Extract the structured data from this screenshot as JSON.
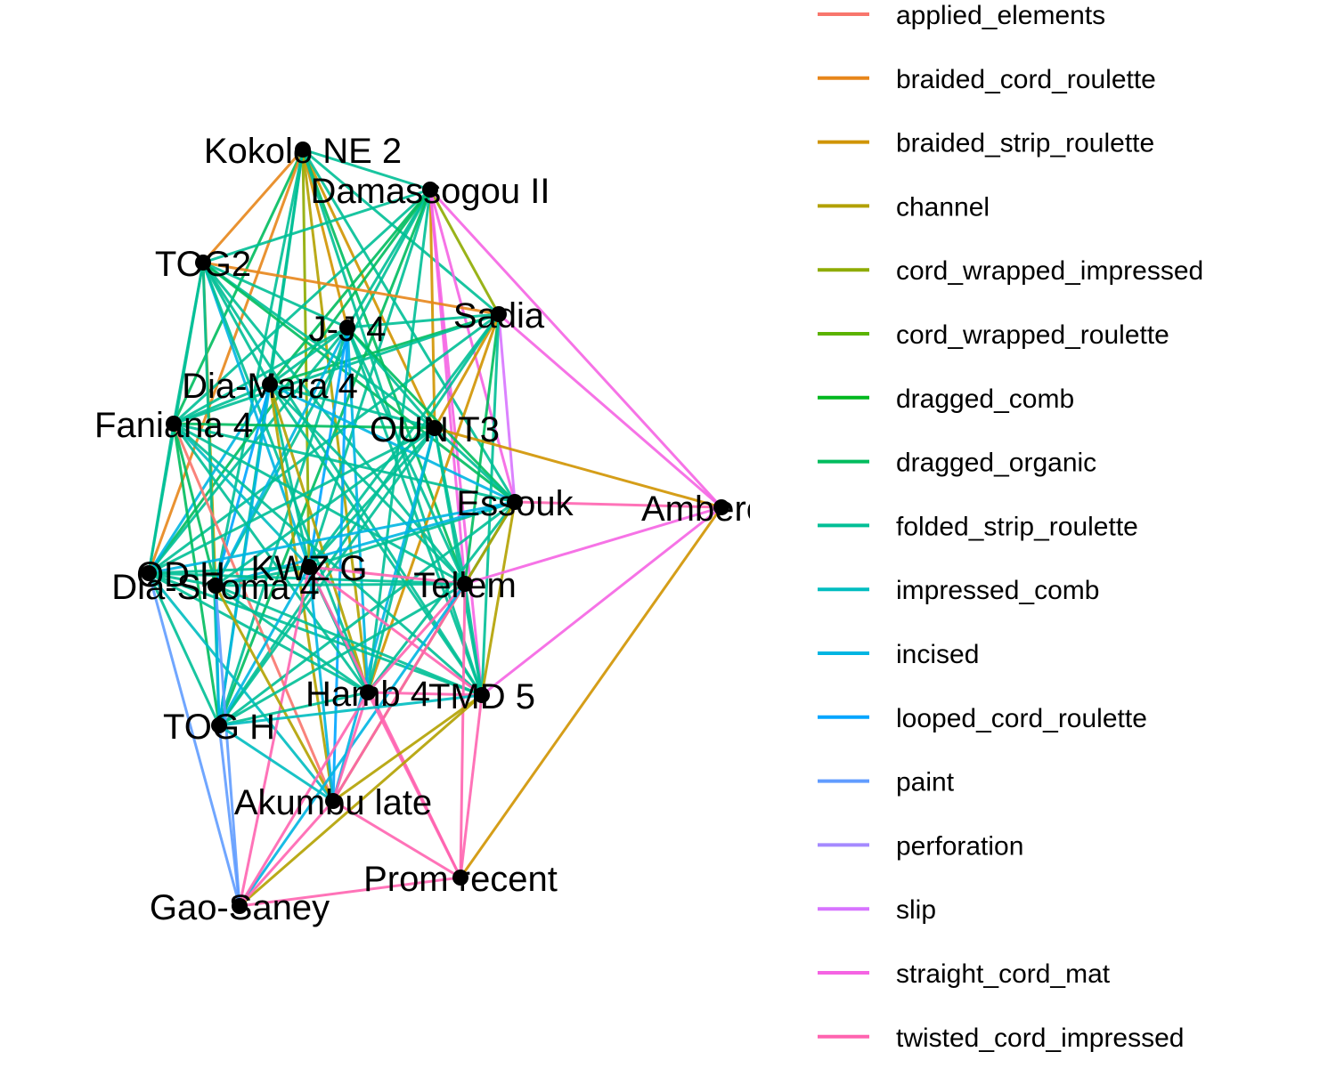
{
  "legend": [
    {
      "name": "applied_elements",
      "color": "#F8766D"
    },
    {
      "name": "braided_cord_roulette",
      "color": "#E7861B"
    },
    {
      "name": "braided_strip_roulette",
      "color": "#D09400"
    },
    {
      "name": "channel",
      "color": "#B2A100"
    },
    {
      "name": "cord_wrapped_impressed",
      "color": "#8EAB00"
    },
    {
      "name": "cord_wrapped_roulette",
      "color": "#5BB300"
    },
    {
      "name": "dragged_comb",
      "color": "#00B81F"
    },
    {
      "name": "dragged_organic",
      "color": "#00BC5E"
    },
    {
      "name": "folded_strip_roulette",
      "color": "#00BF96"
    },
    {
      "name": "impressed_comb",
      "color": "#00BDC0"
    },
    {
      "name": "incised",
      "color": "#00B5E2"
    },
    {
      "name": "looped_cord_roulette",
      "color": "#00A5FF"
    },
    {
      "name": "paint",
      "color": "#619CFF"
    },
    {
      "name": "perforation",
      "color": "#A58AFF"
    },
    {
      "name": "slip",
      "color": "#D774FF"
    },
    {
      "name": "straight_cord_mat",
      "color": "#F564E3"
    },
    {
      "name": "twisted_cord_impressed",
      "color": "#FF64B0"
    }
  ],
  "nodes": [
    {
      "id": "kokolo",
      "label": "Kokolo NE 2"
    },
    {
      "id": "damassogou",
      "label": "Damassogou II"
    },
    {
      "id": "tog2",
      "label": "TOG2"
    },
    {
      "id": "sadia",
      "label": "Sadia"
    },
    {
      "id": "jj4",
      "label": "J-J 4"
    },
    {
      "id": "diamara",
      "label": "Dia-Mara 4"
    },
    {
      "id": "faniana",
      "label": "Faniana 4"
    },
    {
      "id": "ount3",
      "label": "OUN T3"
    },
    {
      "id": "essouk",
      "label": "Essouk"
    },
    {
      "id": "ambere",
      "label": "Ambere D"
    },
    {
      "id": "odh",
      "label": "OD H"
    },
    {
      "id": "kwzg",
      "label": "KWZ G"
    },
    {
      "id": "diashoma",
      "label": "Dia-Shoma 4"
    },
    {
      "id": "tellem",
      "label": "Tellem"
    },
    {
      "id": "hamb4",
      "label": "Hamb 4"
    },
    {
      "id": "tmd5",
      "label": "TMD 5"
    },
    {
      "id": "togh",
      "label": "TOG H"
    },
    {
      "id": "akumbu",
      "label": "Akumbu late"
    },
    {
      "id": "promrecent",
      "label": "Prom recent"
    },
    {
      "id": "gaosaney",
      "label": "Gao-Saney"
    }
  ],
  "edges": [
    {
      "from": "kokolo",
      "to": "damassogou",
      "type": "folded_strip_roulette"
    },
    {
      "from": "kokolo",
      "to": "tog2",
      "type": "braided_cord_roulette"
    },
    {
      "from": "kokolo",
      "to": "sadia",
      "type": "folded_strip_roulette"
    },
    {
      "from": "kokolo",
      "to": "jj4",
      "type": "braided_strip_roulette"
    },
    {
      "from": "kokolo",
      "to": "diamara",
      "type": "folded_strip_roulette"
    },
    {
      "from": "kokolo",
      "to": "faniana",
      "type": "dragged_organic"
    },
    {
      "from": "kokolo",
      "to": "ount3",
      "type": "braided_strip_roulette"
    },
    {
      "from": "kokolo",
      "to": "essouk",
      "type": "folded_strip_roulette"
    },
    {
      "from": "kokolo",
      "to": "odh",
      "type": "braided_cord_roulette"
    },
    {
      "from": "kokolo",
      "to": "kwzg",
      "type": "cord_wrapped_impressed"
    },
    {
      "from": "kokolo",
      "to": "diashoma",
      "type": "folded_strip_roulette"
    },
    {
      "from": "kokolo",
      "to": "tellem",
      "type": "dragged_organic"
    },
    {
      "from": "kokolo",
      "to": "hamb4",
      "type": "channel"
    },
    {
      "from": "kokolo",
      "to": "tmd5",
      "type": "folded_strip_roulette"
    },
    {
      "from": "kokolo",
      "to": "togh",
      "type": "folded_strip_roulette"
    },
    {
      "from": "damassogou",
      "to": "tog2",
      "type": "folded_strip_roulette"
    },
    {
      "from": "damassogou",
      "to": "sadia",
      "type": "cord_wrapped_impressed"
    },
    {
      "from": "damassogou",
      "to": "jj4",
      "type": "folded_strip_roulette"
    },
    {
      "from": "damassogou",
      "to": "diamara",
      "type": "dragged_organic"
    },
    {
      "from": "damassogou",
      "to": "faniana",
      "type": "folded_strip_roulette"
    },
    {
      "from": "damassogou",
      "to": "ount3",
      "type": "braided_strip_roulette"
    },
    {
      "from": "damassogou",
      "to": "essouk",
      "type": "straight_cord_mat"
    },
    {
      "from": "damassogou",
      "to": "ambere",
      "type": "straight_cord_mat"
    },
    {
      "from": "damassogou",
      "to": "odh",
      "type": "dragged_organic"
    },
    {
      "from": "damassogou",
      "to": "kwzg",
      "type": "folded_strip_roulette"
    },
    {
      "from": "damassogou",
      "to": "diashoma",
      "type": "folded_strip_roulette"
    },
    {
      "from": "damassogou",
      "to": "tellem",
      "type": "straight_cord_mat"
    },
    {
      "from": "damassogou",
      "to": "hamb4",
      "type": "folded_strip_roulette"
    },
    {
      "from": "damassogou",
      "to": "tmd5",
      "type": "straight_cord_mat"
    },
    {
      "from": "damassogou",
      "to": "togh",
      "type": "dragged_organic"
    },
    {
      "from": "tog2",
      "to": "sadia",
      "type": "braided_cord_roulette"
    },
    {
      "from": "tog2",
      "to": "jj4",
      "type": "folded_strip_roulette"
    },
    {
      "from": "tog2",
      "to": "diamara",
      "type": "folded_strip_roulette"
    },
    {
      "from": "tog2",
      "to": "faniana",
      "type": "folded_strip_roulette"
    },
    {
      "from": "tog2",
      "to": "ount3",
      "type": "folded_strip_roulette"
    },
    {
      "from": "tog2",
      "to": "essouk",
      "type": "dragged_organic"
    },
    {
      "from": "tog2",
      "to": "odh",
      "type": "folded_strip_roulette"
    },
    {
      "from": "tog2",
      "to": "kwzg",
      "type": "incised"
    },
    {
      "from": "tog2",
      "to": "diashoma",
      "type": "channel"
    },
    {
      "from": "tog2",
      "to": "tellem",
      "type": "folded_strip_roulette"
    },
    {
      "from": "tog2",
      "to": "hamb4",
      "type": "folded_strip_roulette"
    },
    {
      "from": "tog2",
      "to": "tmd5",
      "type": "folded_strip_roulette"
    },
    {
      "from": "tog2",
      "to": "togh",
      "type": "folded_strip_roulette"
    },
    {
      "from": "sadia",
      "to": "jj4",
      "type": "folded_strip_roulette"
    },
    {
      "from": "sadia",
      "to": "diamara",
      "type": "dragged_organic"
    },
    {
      "from": "sadia",
      "to": "faniana",
      "type": "folded_strip_roulette"
    },
    {
      "from": "sadia",
      "to": "ount3",
      "type": "braided_strip_roulette"
    },
    {
      "from": "sadia",
      "to": "essouk",
      "type": "slip"
    },
    {
      "from": "sadia",
      "to": "ambere",
      "type": "straight_cord_mat"
    },
    {
      "from": "sadia",
      "to": "odh",
      "type": "folded_strip_roulette"
    },
    {
      "from": "sadia",
      "to": "kwzg",
      "type": "folded_strip_roulette"
    },
    {
      "from": "sadia",
      "to": "tellem",
      "type": "dragged_organic"
    },
    {
      "from": "sadia",
      "to": "hamb4",
      "type": "braided_strip_roulette"
    },
    {
      "from": "sadia",
      "to": "tmd5",
      "type": "folded_strip_roulette"
    },
    {
      "from": "sadia",
      "to": "togh",
      "type": "folded_strip_roulette"
    },
    {
      "from": "jj4",
      "to": "diamara",
      "type": "folded_strip_roulette"
    },
    {
      "from": "jj4",
      "to": "faniana",
      "type": "folded_strip_roulette"
    },
    {
      "from": "jj4",
      "to": "ount3",
      "type": "folded_strip_roulette"
    },
    {
      "from": "jj4",
      "to": "essouk",
      "type": "dragged_organic"
    },
    {
      "from": "jj4",
      "to": "odh",
      "type": "folded_strip_roulette"
    },
    {
      "from": "jj4",
      "to": "kwzg",
      "type": "looped_cord_roulette"
    },
    {
      "from": "jj4",
      "to": "diashoma",
      "type": "incised"
    },
    {
      "from": "jj4",
      "to": "tellem",
      "type": "folded_strip_roulette"
    },
    {
      "from": "jj4",
      "to": "hamb4",
      "type": "incised"
    },
    {
      "from": "jj4",
      "to": "tmd5",
      "type": "folded_strip_roulette"
    },
    {
      "from": "jj4",
      "to": "togh",
      "type": "folded_strip_roulette"
    },
    {
      "from": "jj4",
      "to": "akumbu",
      "type": "looped_cord_roulette"
    },
    {
      "from": "diamara",
      "to": "faniana",
      "type": "folded_strip_roulette"
    },
    {
      "from": "diamara",
      "to": "ount3",
      "type": "folded_strip_roulette"
    },
    {
      "from": "diamara",
      "to": "essouk",
      "type": "incised"
    },
    {
      "from": "diamara",
      "to": "odh",
      "type": "incised"
    },
    {
      "from": "diamara",
      "to": "kwzg",
      "type": "folded_strip_roulette"
    },
    {
      "from": "diamara",
      "to": "diashoma",
      "type": "looped_cord_roulette"
    },
    {
      "from": "diamara",
      "to": "tellem",
      "type": "folded_strip_roulette"
    },
    {
      "from": "diamara",
      "to": "hamb4",
      "type": "channel"
    },
    {
      "from": "diamara",
      "to": "tmd5",
      "type": "folded_strip_roulette"
    },
    {
      "from": "diamara",
      "to": "togh",
      "type": "incised"
    },
    {
      "from": "diamara",
      "to": "akumbu",
      "type": "channel"
    },
    {
      "from": "faniana",
      "to": "ount3",
      "type": "dragged_organic"
    },
    {
      "from": "faniana",
      "to": "essouk",
      "type": "folded_strip_roulette"
    },
    {
      "from": "faniana",
      "to": "odh",
      "type": "folded_strip_roulette"
    },
    {
      "from": "faniana",
      "to": "kwzg",
      "type": "impressed_comb"
    },
    {
      "from": "faniana",
      "to": "diashoma",
      "type": "dragged_organic"
    },
    {
      "from": "faniana",
      "to": "tellem",
      "type": "folded_strip_roulette"
    },
    {
      "from": "faniana",
      "to": "hamb4",
      "type": "folded_strip_roulette"
    },
    {
      "from": "faniana",
      "to": "tmd5",
      "type": "folded_strip_roulette"
    },
    {
      "from": "faniana",
      "to": "togh",
      "type": "dragged_organic"
    },
    {
      "from": "faniana",
      "to": "akumbu",
      "type": "applied_elements"
    },
    {
      "from": "ount3",
      "to": "essouk",
      "type": "folded_strip_roulette"
    },
    {
      "from": "ount3",
      "to": "ambere",
      "type": "braided_strip_roulette"
    },
    {
      "from": "ount3",
      "to": "odh",
      "type": "folded_strip_roulette"
    },
    {
      "from": "ount3",
      "to": "kwzg",
      "type": "folded_strip_roulette"
    },
    {
      "from": "ount3",
      "to": "diashoma",
      "type": "folded_strip_roulette"
    },
    {
      "from": "ount3",
      "to": "tellem",
      "type": "folded_strip_roulette"
    },
    {
      "from": "ount3",
      "to": "hamb4",
      "type": "folded_strip_roulette"
    },
    {
      "from": "ount3",
      "to": "tmd5",
      "type": "folded_strip_roulette"
    },
    {
      "from": "ount3",
      "to": "togh",
      "type": "folded_strip_roulette"
    },
    {
      "from": "ount3",
      "to": "akumbu",
      "type": "incised"
    },
    {
      "from": "essouk",
      "to": "ambere",
      "type": "twisted_cord_impressed"
    },
    {
      "from": "essouk",
      "to": "odh",
      "type": "incised"
    },
    {
      "from": "essouk",
      "to": "kwzg",
      "type": "folded_strip_roulette"
    },
    {
      "from": "essouk",
      "to": "diashoma",
      "type": "incised"
    },
    {
      "from": "essouk",
      "to": "tellem",
      "type": "folded_strip_roulette"
    },
    {
      "from": "essouk",
      "to": "hamb4",
      "type": "folded_strip_roulette"
    },
    {
      "from": "essouk",
      "to": "tmd5",
      "type": "channel"
    },
    {
      "from": "essouk",
      "to": "togh",
      "type": "folded_strip_roulette"
    },
    {
      "from": "essouk",
      "to": "akumbu",
      "type": "channel"
    },
    {
      "from": "ambere",
      "to": "tellem",
      "type": "straight_cord_mat"
    },
    {
      "from": "ambere",
      "to": "tmd5",
      "type": "straight_cord_mat"
    },
    {
      "from": "ambere",
      "to": "promrecent",
      "type": "braided_strip_roulette"
    },
    {
      "from": "odh",
      "to": "kwzg",
      "type": "folded_strip_roulette"
    },
    {
      "from": "odh",
      "to": "diashoma",
      "type": "folded_strip_roulette"
    },
    {
      "from": "odh",
      "to": "tellem",
      "type": "folded_strip_roulette"
    },
    {
      "from": "odh",
      "to": "hamb4",
      "type": "folded_strip_roulette"
    },
    {
      "from": "odh",
      "to": "tmd5",
      "type": "folded_strip_roulette"
    },
    {
      "from": "odh",
      "to": "togh",
      "type": "folded_strip_roulette"
    },
    {
      "from": "odh",
      "to": "akumbu",
      "type": "impressed_comb"
    },
    {
      "from": "odh",
      "to": "gaosaney",
      "type": "paint"
    },
    {
      "from": "kwzg",
      "to": "diashoma",
      "type": "folded_strip_roulette"
    },
    {
      "from": "kwzg",
      "to": "tellem",
      "type": "twisted_cord_impressed"
    },
    {
      "from": "kwzg",
      "to": "hamb4",
      "type": "folded_strip_roulette"
    },
    {
      "from": "kwzg",
      "to": "tmd5",
      "type": "twisted_cord_impressed"
    },
    {
      "from": "kwzg",
      "to": "togh",
      "type": "incised"
    },
    {
      "from": "kwzg",
      "to": "akumbu",
      "type": "incised"
    },
    {
      "from": "kwzg",
      "to": "promrecent",
      "type": "twisted_cord_impressed"
    },
    {
      "from": "kwzg",
      "to": "gaosaney",
      "type": "twisted_cord_impressed"
    },
    {
      "from": "diashoma",
      "to": "tellem",
      "type": "folded_strip_roulette"
    },
    {
      "from": "diashoma",
      "to": "hamb4",
      "type": "folded_strip_roulette"
    },
    {
      "from": "diashoma",
      "to": "tmd5",
      "type": "folded_strip_roulette"
    },
    {
      "from": "diashoma",
      "to": "togh",
      "type": "incised"
    },
    {
      "from": "diashoma",
      "to": "akumbu",
      "type": "channel"
    },
    {
      "from": "diashoma",
      "to": "gaosaney",
      "type": "paint"
    },
    {
      "from": "tellem",
      "to": "hamb4",
      "type": "twisted_cord_impressed"
    },
    {
      "from": "tellem",
      "to": "tmd5",
      "type": "folded_strip_roulette"
    },
    {
      "from": "tellem",
      "to": "togh",
      "type": "folded_strip_roulette"
    },
    {
      "from": "tellem",
      "to": "akumbu",
      "type": "twisted_cord_impressed"
    },
    {
      "from": "tellem",
      "to": "promrecent",
      "type": "twisted_cord_impressed"
    },
    {
      "from": "tellem",
      "to": "gaosaney",
      "type": "incised"
    },
    {
      "from": "hamb4",
      "to": "tmd5",
      "type": "twisted_cord_impressed"
    },
    {
      "from": "hamb4",
      "to": "togh",
      "type": "folded_strip_roulette"
    },
    {
      "from": "hamb4",
      "to": "akumbu",
      "type": "twisted_cord_impressed"
    },
    {
      "from": "hamb4",
      "to": "promrecent",
      "type": "twisted_cord_impressed"
    },
    {
      "from": "hamb4",
      "to": "gaosaney",
      "type": "twisted_cord_impressed"
    },
    {
      "from": "tmd5",
      "to": "togh",
      "type": "impressed_comb"
    },
    {
      "from": "tmd5",
      "to": "akumbu",
      "type": "channel"
    },
    {
      "from": "tmd5",
      "to": "promrecent",
      "type": "twisted_cord_impressed"
    },
    {
      "from": "tmd5",
      "to": "gaosaney",
      "type": "channel"
    },
    {
      "from": "togh",
      "to": "akumbu",
      "type": "impressed_comb"
    },
    {
      "from": "togh",
      "to": "gaosaney",
      "type": "paint"
    },
    {
      "from": "akumbu",
      "to": "promrecent",
      "type": "twisted_cord_impressed"
    },
    {
      "from": "akumbu",
      "to": "gaosaney",
      "type": "twisted_cord_impressed"
    },
    {
      "from": "promrecent",
      "to": "gaosaney",
      "type": "twisted_cord_impressed"
    }
  ]
}
